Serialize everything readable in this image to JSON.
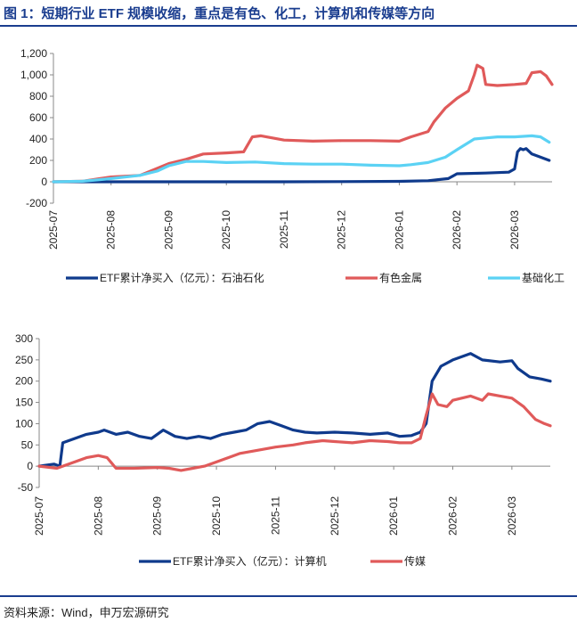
{
  "figure": {
    "title": "图 1：短期行业 ETF 规模收缩，重点是有色、化工，计算机和传媒等方向",
    "source": "资料来源：Wind，申万宏源研究"
  },
  "chart_data": [
    {
      "type": "line",
      "title": "",
      "xlabel": "",
      "ylabel": "",
      "ylim": [
        -200,
        1200
      ],
      "yticks": [
        -200,
        0,
        200,
        400,
        600,
        800,
        1000,
        1200
      ],
      "ytick_labels": [
        "-200",
        "0",
        "200",
        "400",
        "600",
        "800",
        "1,000",
        "1,200"
      ],
      "x_tick_labels": [
        "2025-07",
        "2025-08",
        "2025-09",
        "2025-10",
        "2025-11",
        "2025-12",
        "2026-01",
        "2026-02",
        "2026-03"
      ],
      "x_range_months": [
        0,
        8.65
      ],
      "legend_position": "bottom",
      "series": [
        {
          "name": "ETF累计净买入（亿元）：石油石化",
          "color": "#0f3a8c",
          "points": [
            [
              0,
              0
            ],
            [
              1,
              0
            ],
            [
              2,
              0
            ],
            [
              3,
              0
            ],
            [
              4,
              0
            ],
            [
              5,
              2
            ],
            [
              6,
              4
            ],
            [
              6.5,
              10
            ],
            [
              6.85,
              30
            ],
            [
              7.0,
              75
            ],
            [
              7.5,
              82
            ],
            [
              7.9,
              90
            ],
            [
              8.0,
              120
            ],
            [
              8.05,
              280
            ],
            [
              8.1,
              310
            ],
            [
              8.15,
              300
            ],
            [
              8.2,
              310
            ],
            [
              8.3,
              260
            ],
            [
              8.45,
              230
            ],
            [
              8.6,
              200
            ]
          ]
        },
        {
          "name": "有色金属",
          "color": "#e05a5a",
          "points": [
            [
              0,
              0
            ],
            [
              0.5,
              5
            ],
            [
              0.8,
              30
            ],
            [
              1.0,
              45
            ],
            [
              1.5,
              60
            ],
            [
              2.0,
              170
            ],
            [
              2.3,
              210
            ],
            [
              2.6,
              260
            ],
            [
              3.0,
              270
            ],
            [
              3.3,
              280
            ],
            [
              3.45,
              420
            ],
            [
              3.6,
              430
            ],
            [
              4.0,
              390
            ],
            [
              4.5,
              380
            ],
            [
              5.0,
              385
            ],
            [
              5.5,
              385
            ],
            [
              6.0,
              380
            ],
            [
              6.2,
              420
            ],
            [
              6.5,
              470
            ],
            [
              6.6,
              560
            ],
            [
              6.8,
              690
            ],
            [
              7.0,
              780
            ],
            [
              7.2,
              850
            ],
            [
              7.3,
              1000
            ],
            [
              7.35,
              1090
            ],
            [
              7.45,
              1060
            ],
            [
              7.5,
              910
            ],
            [
              7.7,
              900
            ],
            [
              8.0,
              910
            ],
            [
              8.2,
              920
            ],
            [
              8.3,
              1020
            ],
            [
              8.45,
              1030
            ],
            [
              8.55,
              990
            ],
            [
              8.65,
              910
            ]
          ]
        },
        {
          "name": "基础化工",
          "color": "#5bd2f4",
          "points": [
            [
              0,
              0
            ],
            [
              0.5,
              5
            ],
            [
              0.8,
              20
            ],
            [
              1.0,
              30
            ],
            [
              1.5,
              60
            ],
            [
              1.8,
              100
            ],
            [
              2.0,
              150
            ],
            [
              2.3,
              190
            ],
            [
              2.6,
              190
            ],
            [
              3.0,
              180
            ],
            [
              3.5,
              185
            ],
            [
              4.0,
              170
            ],
            [
              4.5,
              165
            ],
            [
              5.0,
              165
            ],
            [
              5.5,
              155
            ],
            [
              6.0,
              150
            ],
            [
              6.2,
              160
            ],
            [
              6.5,
              180
            ],
            [
              6.8,
              230
            ],
            [
              7.0,
              300
            ],
            [
              7.3,
              400
            ],
            [
              7.5,
              410
            ],
            [
              7.7,
              420
            ],
            [
              8.0,
              420
            ],
            [
              8.3,
              430
            ],
            [
              8.45,
              420
            ],
            [
              8.6,
              370
            ]
          ]
        }
      ]
    },
    {
      "type": "line",
      "title": "",
      "xlabel": "",
      "ylabel": "",
      "ylim": [
        -50,
        300
      ],
      "yticks": [
        -50,
        0,
        50,
        100,
        150,
        200,
        250,
        300
      ],
      "ytick_labels": [
        "-50",
        "0",
        "50",
        "100",
        "150",
        "200",
        "250",
        "300"
      ],
      "x_tick_labels": [
        "2025-07",
        "2025-08",
        "2025-09",
        "2025-10",
        "2025-11",
        "2025-12",
        "2026-01",
        "2026-02",
        "2026-03"
      ],
      "x_range_months": [
        0,
        8.65
      ],
      "legend_position": "bottom",
      "series": [
        {
          "name": "ETF累计净买入（亿元）：计算机",
          "color": "#0f3a8c",
          "points": [
            [
              0,
              0
            ],
            [
              0.25,
              5
            ],
            [
              0.35,
              0
            ],
            [
              0.4,
              55
            ],
            [
              0.6,
              65
            ],
            [
              0.8,
              75
            ],
            [
              1.0,
              80
            ],
            [
              1.1,
              85
            ],
            [
              1.3,
              75
            ],
            [
              1.5,
              80
            ],
            [
              1.7,
              70
            ],
            [
              1.9,
              65
            ],
            [
              2.1,
              85
            ],
            [
              2.3,
              70
            ],
            [
              2.5,
              65
            ],
            [
              2.7,
              70
            ],
            [
              2.9,
              65
            ],
            [
              3.1,
              75
            ],
            [
              3.3,
              80
            ],
            [
              3.5,
              85
            ],
            [
              3.7,
              100
            ],
            [
              3.9,
              105
            ],
            [
              4.1,
              95
            ],
            [
              4.3,
              85
            ],
            [
              4.5,
              80
            ],
            [
              4.7,
              78
            ],
            [
              5.0,
              80
            ],
            [
              5.3,
              78
            ],
            [
              5.6,
              75
            ],
            [
              5.9,
              78
            ],
            [
              6.1,
              70
            ],
            [
              6.3,
              72
            ],
            [
              6.45,
              80
            ],
            [
              6.55,
              100
            ],
            [
              6.65,
              200
            ],
            [
              6.8,
              235
            ],
            [
              7.0,
              250
            ],
            [
              7.2,
              260
            ],
            [
              7.3,
              265
            ],
            [
              7.5,
              250
            ],
            [
              7.8,
              245
            ],
            [
              8.0,
              248
            ],
            [
              8.1,
              230
            ],
            [
              8.3,
              210
            ],
            [
              8.5,
              205
            ],
            [
              8.65,
              200
            ]
          ]
        },
        {
          "name": "传媒",
          "color": "#e05a5a",
          "points": [
            [
              0,
              0
            ],
            [
              0.3,
              -5
            ],
            [
              0.5,
              5
            ],
            [
              0.8,
              20
            ],
            [
              1.0,
              25
            ],
            [
              1.15,
              20
            ],
            [
              1.3,
              -5
            ],
            [
              1.6,
              -5
            ],
            [
              2.0,
              -3
            ],
            [
              2.2,
              -5
            ],
            [
              2.4,
              -10
            ],
            [
              2.6,
              -5
            ],
            [
              2.8,
              0
            ],
            [
              3.0,
              10
            ],
            [
              3.2,
              20
            ],
            [
              3.4,
              30
            ],
            [
              3.6,
              35
            ],
            [
              3.8,
              40
            ],
            [
              4.0,
              45
            ],
            [
              4.3,
              50
            ],
            [
              4.5,
              55
            ],
            [
              4.8,
              60
            ],
            [
              5.0,
              58
            ],
            [
              5.3,
              55
            ],
            [
              5.6,
              60
            ],
            [
              5.9,
              58
            ],
            [
              6.1,
              55
            ],
            [
              6.3,
              55
            ],
            [
              6.45,
              65
            ],
            [
              6.55,
              120
            ],
            [
              6.65,
              170
            ],
            [
              6.75,
              145
            ],
            [
              6.9,
              140
            ],
            [
              7.0,
              155
            ],
            [
              7.3,
              165
            ],
            [
              7.5,
              155
            ],
            [
              7.6,
              170
            ],
            [
              7.8,
              165
            ],
            [
              8.0,
              160
            ],
            [
              8.2,
              140
            ],
            [
              8.4,
              110
            ],
            [
              8.55,
              100
            ],
            [
              8.65,
              95
            ]
          ]
        }
      ]
    }
  ]
}
